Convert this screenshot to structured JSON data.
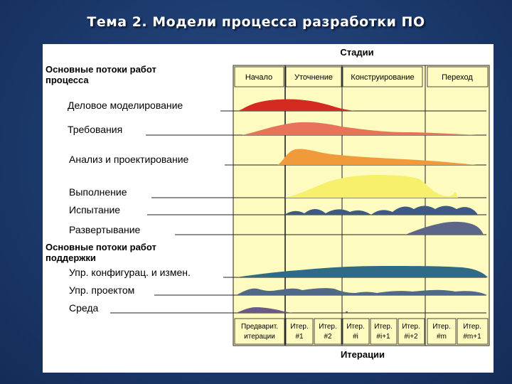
{
  "slide": {
    "title": "Тема 2. Модели процесса разработки ПО"
  },
  "diagram": {
    "stages_title": "Стадии",
    "stages": [
      "Начало",
      "Уточнение",
      "Конструирование",
      "Переход"
    ],
    "process_header": "Основные потоки работ процесса",
    "process_flows": [
      "Деловое моделирование",
      "Требования",
      "Анализ и проектирование",
      "Выполнение",
      "Испытание",
      "Развертывание"
    ],
    "support_header": "Основные потоки работ поддержки",
    "support_flows": [
      "Упр. конфигурац. и измен.",
      "Упр. проектом",
      "Среда"
    ],
    "iterations": [
      [
        "Предварит.",
        "итерации"
      ],
      [
        "Итер.",
        "#1"
      ],
      [
        "Итер.",
        "#2"
      ],
      [
        "Итер.",
        "#i"
      ],
      [
        "Итер.",
        "#i+1"
      ],
      [
        "Итер.",
        "#i+2"
      ],
      [
        "Итер.",
        "#m"
      ],
      [
        "Итер.",
        "#m+1"
      ]
    ],
    "iterations_title": "Итерации",
    "colors": {
      "chart_bg": "#fefbc0",
      "business_modeling": "#d42a20",
      "requirements": "#e8735a",
      "analysis_design": "#f09a3c",
      "implementation": "#f6f06a",
      "test": "#3f5a82",
      "deployment": "#5c6688",
      "config_mgmt": "#2f6b84",
      "project_mgmt": "#4f6a88",
      "environment": "#6a5a8a"
    }
  }
}
